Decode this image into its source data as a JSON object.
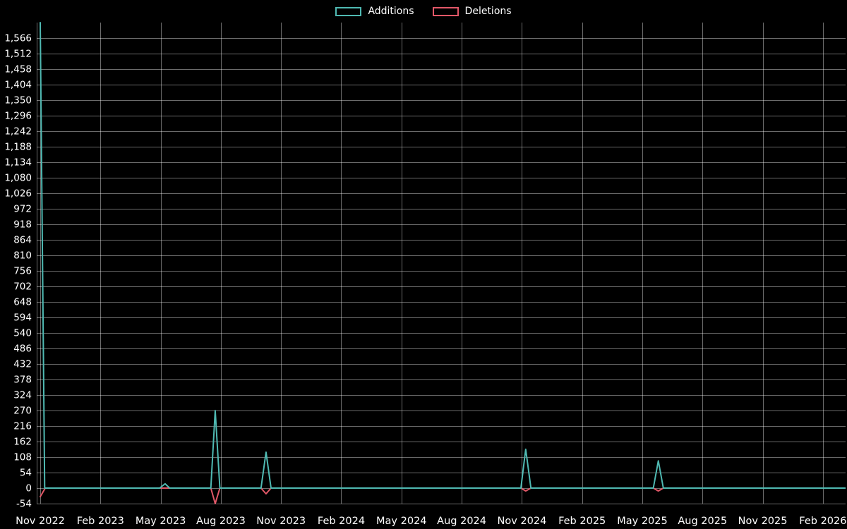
{
  "page": {
    "background": "#000000",
    "text_color": "#ffffff"
  },
  "chart_data": {
    "type": "line",
    "title": "",
    "legend_position": "top",
    "grid": true,
    "x_axis": {
      "tick_labels": [
        "Nov 2022",
        "Feb 2023",
        "May 2023",
        "Aug 2023",
        "Nov 2023",
        "Feb 2024",
        "May 2024",
        "Aug 2024",
        "Nov 2024",
        "Feb 2025",
        "May 2025",
        "Aug 2025",
        "Nov 2025",
        "Feb 2026"
      ],
      "tick_months": [
        0,
        3,
        6,
        9,
        12,
        15,
        18,
        21,
        24,
        27,
        30,
        33,
        36,
        39
      ]
    },
    "y_axis": {
      "tick_labels": [
        "1,566",
        "1,512",
        "1,458",
        "1,404",
        "1,350",
        "1,296",
        "1,242",
        "1,188",
        "1,134",
        "1,080",
        "1,026",
        "972",
        "918",
        "864",
        "810",
        "756",
        "702",
        "648",
        "594",
        "540",
        "486",
        "432",
        "378",
        "324",
        "270",
        "216",
        "162",
        "108",
        "54",
        "0",
        "-54"
      ],
      "tick_values": [
        1566,
        1512,
        1458,
        1404,
        1350,
        1296,
        1242,
        1188,
        1134,
        1080,
        1026,
        972,
        918,
        864,
        810,
        756,
        702,
        648,
        594,
        540,
        486,
        432,
        378,
        324,
        270,
        216,
        162,
        108,
        54,
        0,
        -54
      ],
      "min": -54,
      "max": 1620,
      "step": 54
    },
    "series": [
      {
        "name": "Additions",
        "color": "#4fb9b2",
        "points": [
          [
            0,
            1620
          ],
          [
            0.22,
            0
          ],
          [
            5.95,
            0
          ],
          [
            6.22,
            15
          ],
          [
            6.45,
            0
          ],
          [
            8.5,
            0
          ],
          [
            8.72,
            270
          ],
          [
            8.95,
            0
          ],
          [
            11.0,
            0
          ],
          [
            11.25,
            125
          ],
          [
            11.5,
            0
          ],
          [
            23.95,
            0
          ],
          [
            24.19,
            135
          ],
          [
            24.45,
            0
          ],
          [
            30.55,
            0
          ],
          [
            30.8,
            95
          ],
          [
            31.05,
            0
          ],
          [
            40.1,
            0
          ]
        ]
      },
      {
        "name": "Deletions",
        "color": "#e25868",
        "points": [
          [
            0,
            -30
          ],
          [
            0.25,
            0
          ],
          [
            8.5,
            0
          ],
          [
            8.72,
            -54
          ],
          [
            8.95,
            0
          ],
          [
            11.0,
            0
          ],
          [
            11.25,
            -20
          ],
          [
            11.5,
            0
          ],
          [
            23.95,
            0
          ],
          [
            24.19,
            -10
          ],
          [
            24.45,
            0
          ],
          [
            30.55,
            0
          ],
          [
            30.8,
            -10
          ],
          [
            31.05,
            0
          ],
          [
            40.1,
            0
          ]
        ]
      }
    ]
  }
}
